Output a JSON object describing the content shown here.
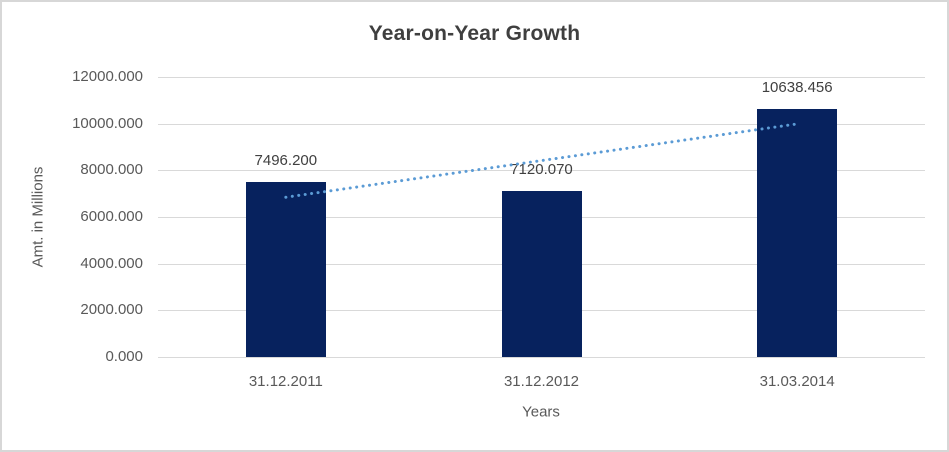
{
  "chart_data": {
    "type": "bar",
    "title": "Year-on-Year Growth",
    "categories": [
      "31.12.2011",
      "31.12.2012",
      "31.03.2014"
    ],
    "values": [
      7496.2,
      7120.07,
      10638.456
    ],
    "value_labels": [
      "7496.200",
      "7120.070",
      "10638.456"
    ],
    "xlabel": "Years",
    "ylabel": "Amt. in Millions",
    "ylim": [
      0,
      12000
    ],
    "ytick_values": [
      0,
      2000,
      4000,
      6000,
      8000,
      10000,
      12000
    ],
    "ytick_labels": [
      "0.000",
      "2000.000",
      "4000.000",
      "6000.000",
      "8000.000",
      "10000.000",
      "12000.000"
    ],
    "grid": true,
    "legend": "none",
    "bar_color": "#07225e",
    "trendline": {
      "type": "linear",
      "style": "dotted",
      "color": "#5b9bd5"
    },
    "colors": {
      "grid": "#d9d9d9",
      "axis_text": "#595959",
      "title_text": "#3f3f3f",
      "label_text": "#404040",
      "frame_border": "#d7d7d7",
      "background": "#ffffff"
    }
  }
}
